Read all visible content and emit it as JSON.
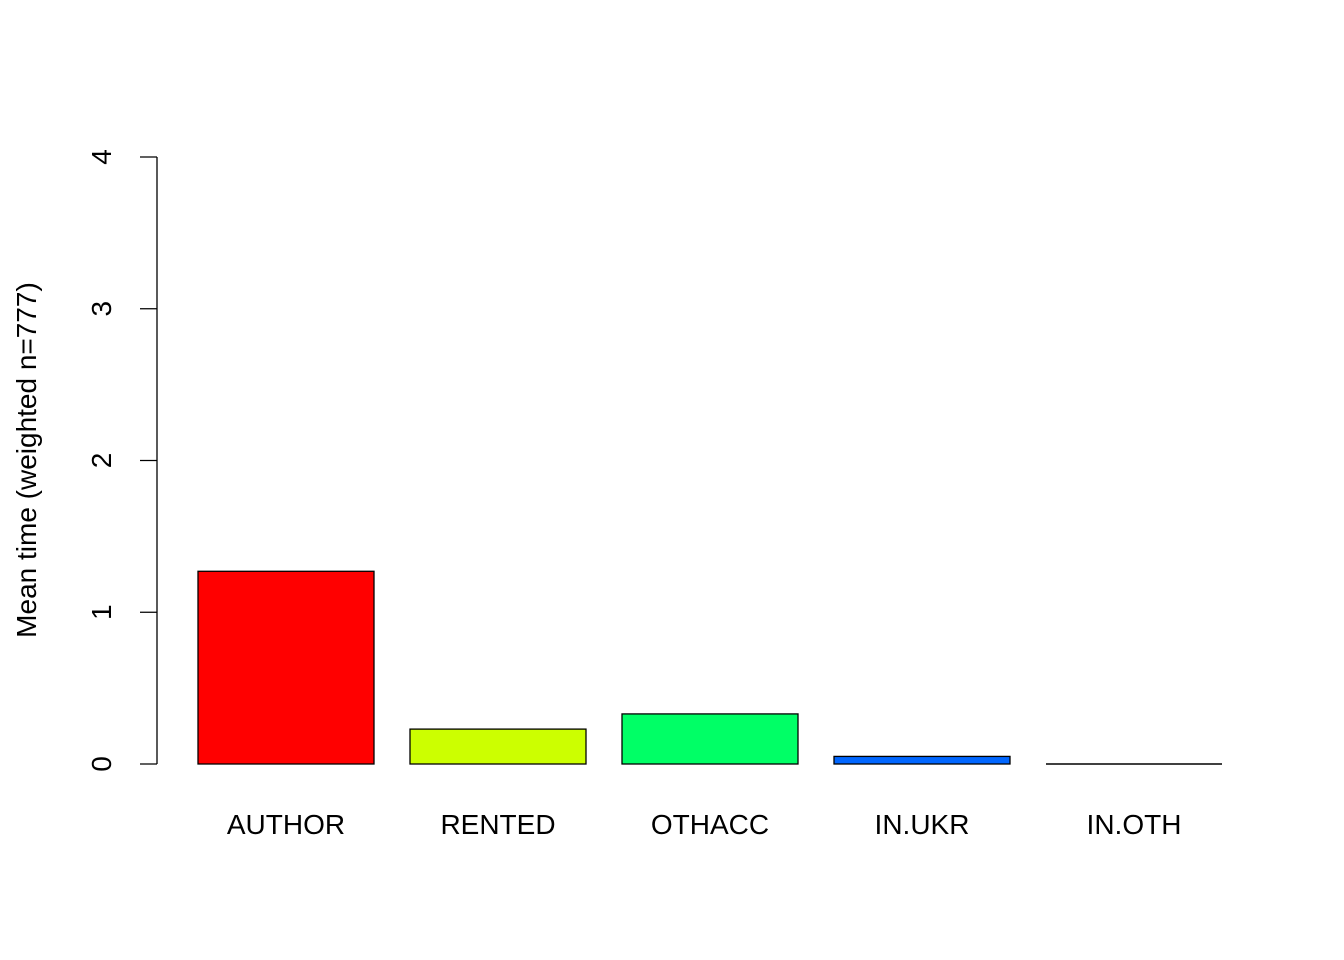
{
  "chart_data": {
    "type": "bar",
    "title": "",
    "xlabel": "",
    "ylabel": "Mean time (weighted n=777)",
    "categories": [
      "AUTHOR",
      "RENTED",
      "OTHACC",
      "IN.UKR",
      "IN.OTH"
    ],
    "values": [
      1.27,
      0.23,
      0.33,
      0.05,
      0.0
    ],
    "colors": [
      "#FF0000",
      "#CCFF00",
      "#00FF66",
      "#0066FF",
      "#CC00FF"
    ],
    "ylim": [
      0,
      4
    ],
    "yticks": [
      0,
      1,
      2,
      3,
      4
    ],
    "grid": false,
    "legend": "none"
  }
}
